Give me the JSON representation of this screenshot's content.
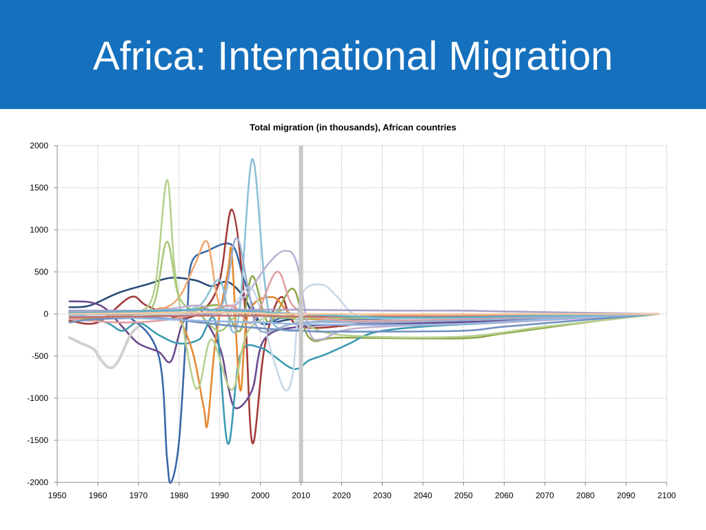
{
  "slide": {
    "title": "Africa: International Migration",
    "header_color": "#1570bd"
  },
  "chart_data": {
    "type": "line",
    "title": "Total migration (in thousands), African countries",
    "xlabel": "",
    "ylabel": "",
    "xlim": [
      1950,
      2100
    ],
    "ylim": [
      -2000,
      2000
    ],
    "xticks": [
      1950,
      1960,
      1970,
      1980,
      1990,
      2000,
      2010,
      2020,
      2030,
      2040,
      2050,
      2060,
      2070,
      2080,
      2090,
      2100
    ],
    "yticks": [
      2000,
      1500,
      1000,
      500,
      0,
      -500,
      -1000,
      -1500,
      -2000
    ],
    "grid": true,
    "legend": "none",
    "reference_line": {
      "x": 2010,
      "color": "#c8c8c8"
    },
    "series": [
      {
        "color": "#3a67a8",
        "points": [
          [
            1953,
            30
          ],
          [
            1960,
            0
          ],
          [
            1968,
            -50
          ],
          [
            1975,
            -500
          ],
          [
            1977,
            -1700
          ],
          [
            1978,
            -2000
          ],
          [
            1980,
            -1500
          ],
          [
            1982,
            0
          ],
          [
            1983,
            600
          ],
          [
            1987,
            750
          ],
          [
            1993,
            820
          ],
          [
            1996,
            400
          ],
          [
            2000,
            -100
          ],
          [
            2005,
            -50
          ],
          [
            2010,
            -60
          ],
          [
            2020,
            -60
          ],
          [
            2030,
            -60
          ],
          [
            2050,
            -50
          ],
          [
            2070,
            -20
          ],
          [
            2098,
            0
          ]
        ]
      },
      {
        "color": "#2c4d78",
        "points": [
          [
            1953,
            80
          ],
          [
            1958,
            100
          ],
          [
            1965,
            250
          ],
          [
            1972,
            350
          ],
          [
            1978,
            430
          ],
          [
            1984,
            400
          ],
          [
            1988,
            330
          ],
          [
            1992,
            380
          ],
          [
            1996,
            200
          ],
          [
            2000,
            -100
          ],
          [
            2010,
            -50
          ],
          [
            2030,
            -30
          ],
          [
            2060,
            -20
          ],
          [
            2098,
            0
          ]
        ]
      },
      {
        "color": "#a23a3a",
        "points": [
          [
            1953,
            -80
          ],
          [
            1960,
            -100
          ],
          [
            1968,
            200
          ],
          [
            1972,
            100
          ],
          [
            1980,
            -50
          ],
          [
            1986,
            50
          ],
          [
            1990,
            400
          ],
          [
            1993,
            1240
          ],
          [
            1996,
            200
          ],
          [
            1998,
            -1530
          ],
          [
            2001,
            -400
          ],
          [
            2005,
            200
          ],
          [
            2010,
            -150
          ],
          [
            2030,
            -100
          ],
          [
            2060,
            -50
          ],
          [
            2098,
            0
          ]
        ]
      },
      {
        "color": "#8ea84a",
        "points": [
          [
            1953,
            -50
          ],
          [
            1960,
            -60
          ],
          [
            1970,
            -30
          ],
          [
            1980,
            0
          ],
          [
            1990,
            100
          ],
          [
            1995,
            -200
          ],
          [
            1998,
            450
          ],
          [
            2002,
            -100
          ],
          [
            2008,
            300
          ],
          [
            2012,
            -280
          ],
          [
            2020,
            -280
          ],
          [
            2049,
            -290
          ],
          [
            2060,
            -230
          ],
          [
            2080,
            -100
          ],
          [
            2098,
            0
          ]
        ]
      },
      {
        "color": "#6a4a8e",
        "points": [
          [
            1953,
            150
          ],
          [
            1958,
            140
          ],
          [
            1962,
            60
          ],
          [
            1966,
            -150
          ],
          [
            1970,
            -350
          ],
          [
            1975,
            -450
          ],
          [
            1978,
            -560
          ],
          [
            1981,
            -100
          ],
          [
            1985,
            0
          ],
          [
            1990,
            -400
          ],
          [
            1992,
            -850
          ],
          [
            1994,
            -1120
          ],
          [
            1998,
            -900
          ],
          [
            2001,
            -300
          ],
          [
            2010,
            -150
          ],
          [
            2030,
            -120
          ],
          [
            2060,
            -80
          ],
          [
            2098,
            0
          ]
        ]
      },
      {
        "color": "#3a9ab0",
        "points": [
          [
            1953,
            20
          ],
          [
            1962,
            -100
          ],
          [
            1966,
            -200
          ],
          [
            1970,
            -100
          ],
          [
            1975,
            -250
          ],
          [
            1980,
            -350
          ],
          [
            1985,
            -300
          ],
          [
            1989,
            -100
          ],
          [
            1992,
            -1540
          ],
          [
            1995,
            -500
          ],
          [
            2000,
            -400
          ],
          [
            2008,
            -650
          ],
          [
            2012,
            -550
          ],
          [
            2016,
            -480
          ],
          [
            2022,
            -350
          ],
          [
            2028,
            -220
          ],
          [
            2040,
            -150
          ],
          [
            2060,
            -100
          ],
          [
            2098,
            0
          ]
        ]
      },
      {
        "color": "#e68a33",
        "points": [
          [
            1953,
            -100
          ],
          [
            1960,
            -50
          ],
          [
            1970,
            0
          ],
          [
            1978,
            50
          ],
          [
            1983,
            -400
          ],
          [
            1986,
            -1100
          ],
          [
            1987,
            -1300
          ],
          [
            1989,
            -300
          ],
          [
            1992,
            500
          ],
          [
            1993,
            700
          ],
          [
            1995,
            -900
          ],
          [
            1997,
            0
          ],
          [
            2003,
            200
          ],
          [
            2010,
            -50
          ],
          [
            2030,
            -20
          ],
          [
            2060,
            -10
          ],
          [
            2098,
            0
          ]
        ]
      },
      {
        "color": "#f0a870",
        "points": [
          [
            1953,
            -50
          ],
          [
            1965,
            -20
          ],
          [
            1975,
            50
          ],
          [
            1980,
            200
          ],
          [
            1984,
            600
          ],
          [
            1987,
            850
          ],
          [
            1990,
            100
          ],
          [
            1995,
            50
          ],
          [
            2000,
            0
          ],
          [
            2010,
            -30
          ],
          [
            2098,
            0
          ]
        ]
      },
      {
        "color": "#b8d090",
        "points": [
          [
            1953,
            0
          ],
          [
            1965,
            0
          ],
          [
            1970,
            20
          ],
          [
            1974,
            300
          ],
          [
            1977,
            1590
          ],
          [
            1979,
            500
          ],
          [
            1983,
            -700
          ],
          [
            1985,
            -850
          ],
          [
            1988,
            -300
          ],
          [
            1993,
            -900
          ],
          [
            1997,
            -200
          ],
          [
            2005,
            0
          ],
          [
            2010,
            -100
          ],
          [
            2020,
            -250
          ],
          [
            2049,
            -270
          ],
          [
            2070,
            -150
          ],
          [
            2098,
            0
          ]
        ]
      },
      {
        "color": "#a8c878",
        "points": [
          [
            1953,
            0
          ],
          [
            1970,
            30
          ],
          [
            1974,
            150
          ],
          [
            1977,
            860
          ],
          [
            1980,
            200
          ],
          [
            1985,
            0
          ],
          [
            1990,
            -200
          ],
          [
            1995,
            0
          ],
          [
            2005,
            50
          ],
          [
            2010,
            -50
          ],
          [
            2098,
            0
          ]
        ]
      },
      {
        "color": "#8cc0d6",
        "points": [
          [
            1953,
            20
          ],
          [
            1970,
            20
          ],
          [
            1978,
            30
          ],
          [
            1985,
            100
          ],
          [
            1990,
            400
          ],
          [
            1993,
            -200
          ],
          [
            1995,
            100
          ],
          [
            1998,
            1840
          ],
          [
            2001,
            400
          ],
          [
            2003,
            -100
          ],
          [
            2008,
            -200
          ],
          [
            2012,
            -100
          ],
          [
            2020,
            -80
          ],
          [
            2040,
            -70
          ],
          [
            2060,
            -50
          ],
          [
            2098,
            0
          ]
        ]
      },
      {
        "color": "#c0b0d4",
        "points": [
          [
            1953,
            0
          ],
          [
            1975,
            50
          ],
          [
            1985,
            100
          ],
          [
            1990,
            0
          ],
          [
            1996,
            200
          ],
          [
            2002,
            600
          ],
          [
            2006,
            750
          ],
          [
            2009,
            600
          ],
          [
            2012,
            -200
          ],
          [
            2015,
            -300
          ],
          [
            2020,
            -200
          ],
          [
            2030,
            -150
          ],
          [
            2060,
            -100
          ],
          [
            2098,
            0
          ]
        ]
      },
      {
        "color": "#c8d8e8",
        "points": [
          [
            1953,
            0
          ],
          [
            1975,
            0
          ],
          [
            1985,
            0
          ],
          [
            1993,
            100
          ],
          [
            1998,
            300
          ],
          [
            2003,
            -500
          ],
          [
            2006,
            -900
          ],
          [
            2008,
            -700
          ],
          [
            2010,
            200
          ],
          [
            2015,
            350
          ],
          [
            2019,
            200
          ],
          [
            2023,
            0
          ],
          [
            2030,
            -50
          ],
          [
            2060,
            -50
          ],
          [
            2098,
            0
          ]
        ]
      },
      {
        "color": "#e0a0a0",
        "points": [
          [
            1953,
            -60
          ],
          [
            1965,
            -100
          ],
          [
            1975,
            -80
          ],
          [
            1985,
            0
          ],
          [
            1993,
            100
          ],
          [
            1998,
            -100
          ],
          [
            2004,
            500
          ],
          [
            2008,
            100
          ],
          [
            2015,
            -50
          ],
          [
            2030,
            -80
          ],
          [
            2060,
            -50
          ],
          [
            2098,
            0
          ]
        ]
      },
      {
        "color": "#9ab0d0",
        "points": [
          [
            1953,
            0
          ],
          [
            1970,
            0
          ],
          [
            1980,
            50
          ],
          [
            1990,
            60
          ],
          [
            1994,
            900
          ],
          [
            1997,
            300
          ],
          [
            2000,
            -200
          ],
          [
            2010,
            -100
          ],
          [
            2030,
            -100
          ],
          [
            2060,
            -60
          ],
          [
            2098,
            0
          ]
        ]
      },
      {
        "color": "#a8a0c8",
        "points": [
          [
            1953,
            40
          ],
          [
            1960,
            40
          ],
          [
            1975,
            40
          ],
          [
            1985,
            50
          ],
          [
            2000,
            50
          ],
          [
            2010,
            50
          ],
          [
            2030,
            40
          ],
          [
            2049,
            40
          ],
          [
            2060,
            30
          ],
          [
            2098,
            0
          ]
        ]
      },
      {
        "color": "#7090c0",
        "points": [
          [
            1953,
            -100
          ],
          [
            1960,
            -60
          ],
          [
            1975,
            -50
          ],
          [
            1985,
            -100
          ],
          [
            1995,
            -150
          ],
          [
            2010,
            -200
          ],
          [
            2020,
            -210
          ],
          [
            2049,
            -200
          ],
          [
            2060,
            -150
          ],
          [
            2080,
            -70
          ],
          [
            2098,
            0
          ]
        ]
      },
      {
        "color": "#98b8e0",
        "points": [
          [
            1953,
            -20
          ],
          [
            1970,
            -50
          ],
          [
            1985,
            -80
          ],
          [
            2000,
            -100
          ],
          [
            2010,
            -120
          ],
          [
            2030,
            -130
          ],
          [
            2049,
            -120
          ],
          [
            2060,
            -90
          ],
          [
            2080,
            -40
          ],
          [
            2098,
            0
          ]
        ]
      },
      {
        "color": "#c07070",
        "points": [
          [
            1953,
            -40
          ],
          [
            1970,
            -30
          ],
          [
            1985,
            -20
          ],
          [
            2000,
            -20
          ],
          [
            2010,
            -30
          ],
          [
            2049,
            -30
          ],
          [
            2070,
            -15
          ],
          [
            2098,
            0
          ]
        ]
      },
      {
        "color": "#60b0c8",
        "points": [
          [
            1953,
            10
          ],
          [
            1970,
            30
          ],
          [
            1985,
            50
          ],
          [
            1998,
            30
          ],
          [
            2010,
            0
          ],
          [
            2030,
            -40
          ],
          [
            2049,
            -40
          ],
          [
            2070,
            -20
          ],
          [
            2098,
            0
          ]
        ]
      },
      {
        "color": "#f4c8a0",
        "points": [
          [
            1953,
            0
          ],
          [
            1970,
            10
          ],
          [
            1985,
            20
          ],
          [
            2000,
            10
          ],
          [
            2010,
            0
          ],
          [
            2098,
            0
          ]
        ]
      },
      {
        "color": "#d0d0d0",
        "points": [
          [
            1953,
            -280
          ],
          [
            1956,
            -350
          ],
          [
            1959,
            -420
          ],
          [
            1961,
            -560
          ],
          [
            1963,
            -640
          ],
          [
            1965,
            -560
          ],
          [
            1968,
            -250
          ],
          [
            1970,
            -150
          ]
        ],
        "width": 4
      }
    ]
  }
}
